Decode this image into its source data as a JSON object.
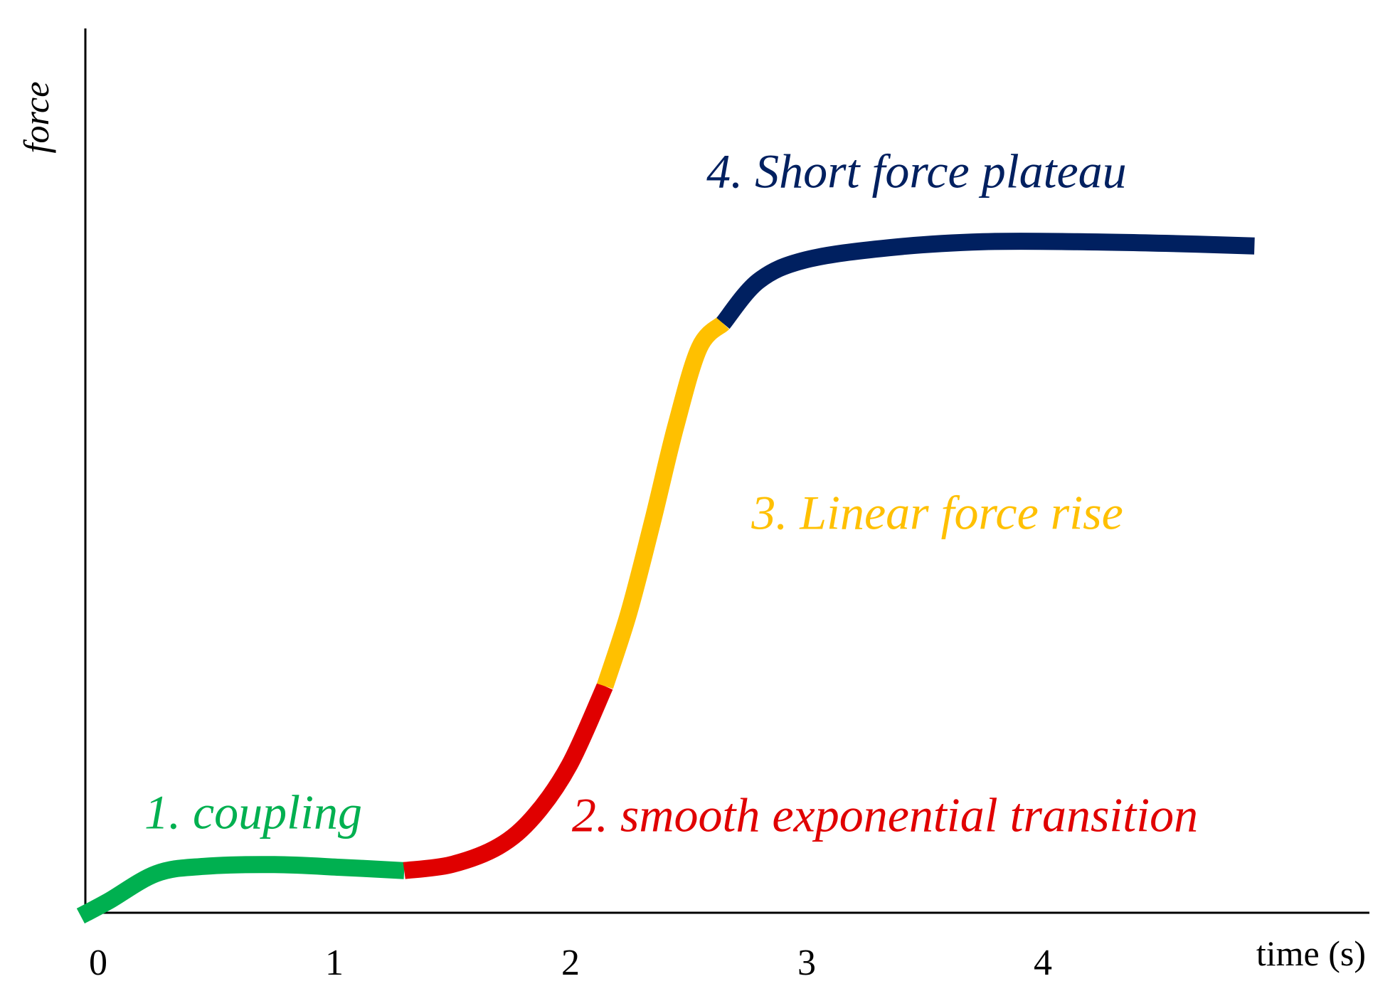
{
  "chart_data": {
    "type": "line",
    "title": "",
    "xlabel": "time (s)",
    "ylabel": "force",
    "xlim": [
      -0.05,
      5.3
    ],
    "ylim": [
      -0.06,
      1.2
    ],
    "x_ticks": [
      0,
      1,
      2,
      3,
      4
    ],
    "x_tick_labels": [
      "0",
      "1",
      "2",
      "3",
      "4"
    ],
    "grid": false,
    "series": [
      {
        "name": "1. coupling",
        "color": "#00b050",
        "points": [
          [
            -0.02,
            -0.03
          ],
          [
            0.1,
            -0.005
          ],
          [
            0.3,
            0.04
          ],
          [
            0.5,
            0.052
          ],
          [
            0.8,
            0.055
          ],
          [
            1.1,
            0.05
          ],
          [
            1.35,
            0.045
          ]
        ]
      },
      {
        "name": "2. smooth exponential transition",
        "color": "#e00000",
        "points": [
          [
            1.35,
            0.045
          ],
          [
            1.55,
            0.055
          ],
          [
            1.75,
            0.085
          ],
          [
            1.9,
            0.135
          ],
          [
            2.05,
            0.22
          ],
          [
            2.2,
            0.35
          ]
        ]
      },
      {
        "name": "3. Linear force rise",
        "color": "#ffc000",
        "points": [
          [
            2.2,
            0.35
          ],
          [
            2.3,
            0.47
          ],
          [
            2.4,
            0.62
          ],
          [
            2.5,
            0.78
          ],
          [
            2.6,
            0.91
          ],
          [
            2.7,
            0.95
          ]
        ]
      },
      {
        "name": "4. Short force plateau",
        "color": "#002060",
        "points": [
          [
            2.7,
            0.95
          ],
          [
            2.85,
            1.02
          ],
          [
            3.05,
            1.055
          ],
          [
            3.4,
            1.075
          ],
          [
            3.8,
            1.085
          ],
          [
            4.2,
            1.085
          ],
          [
            4.6,
            1.082
          ],
          [
            4.95,
            1.078
          ]
        ]
      }
    ],
    "annotations": [
      {
        "text": "1. coupling",
        "x": 0.25,
        "y": 0.115,
        "color": "#00b050"
      },
      {
        "text": "2. smooth exponential transition",
        "x": 2.06,
        "y": 0.11,
        "color": "#e00000"
      },
      {
        "text": "3. Linear force rise",
        "x": 2.82,
        "y": 0.61,
        "color": "#ffc000"
      },
      {
        "text": "4. Short force plateau",
        "x": 2.63,
        "y": 1.175,
        "color": "#002060"
      }
    ]
  }
}
